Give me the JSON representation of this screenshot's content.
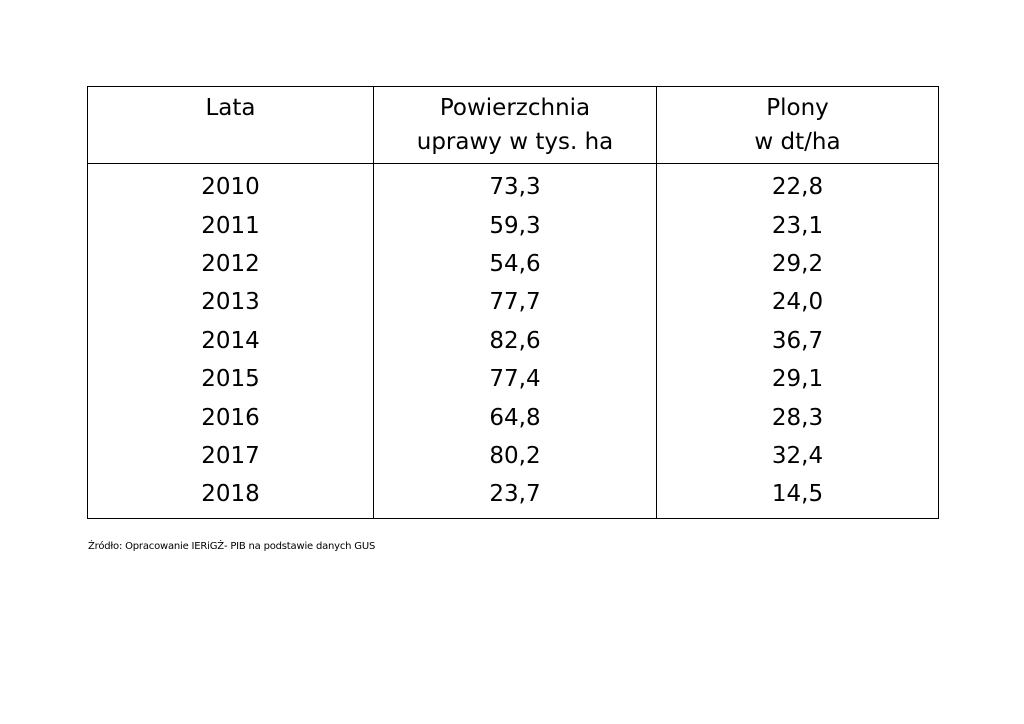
{
  "table": {
    "headers": [
      [
        "Lata"
      ],
      [
        "Powierzchnia",
        "uprawy w tys. ha"
      ],
      [
        "Plony",
        "w dt/ha"
      ]
    ],
    "rows": [
      [
        "2010",
        "73,3",
        "22,8"
      ],
      [
        "2011",
        "59,3",
        "23,1"
      ],
      [
        "2012",
        "54,6",
        "29,2"
      ],
      [
        "2013",
        "77,7",
        "24,0"
      ],
      [
        "2014",
        "82,6",
        "36,7"
      ],
      [
        "2015",
        "77,4",
        "29,1"
      ],
      [
        "2016",
        "64,8",
        "28,3"
      ],
      [
        "2017",
        "80,2",
        "32,4"
      ],
      [
        "2018",
        "23,7",
        "14,5"
      ]
    ]
  },
  "source_note": "Źródło: Opracowanie IERiGŻ- PIB na podstawie danych GUS"
}
